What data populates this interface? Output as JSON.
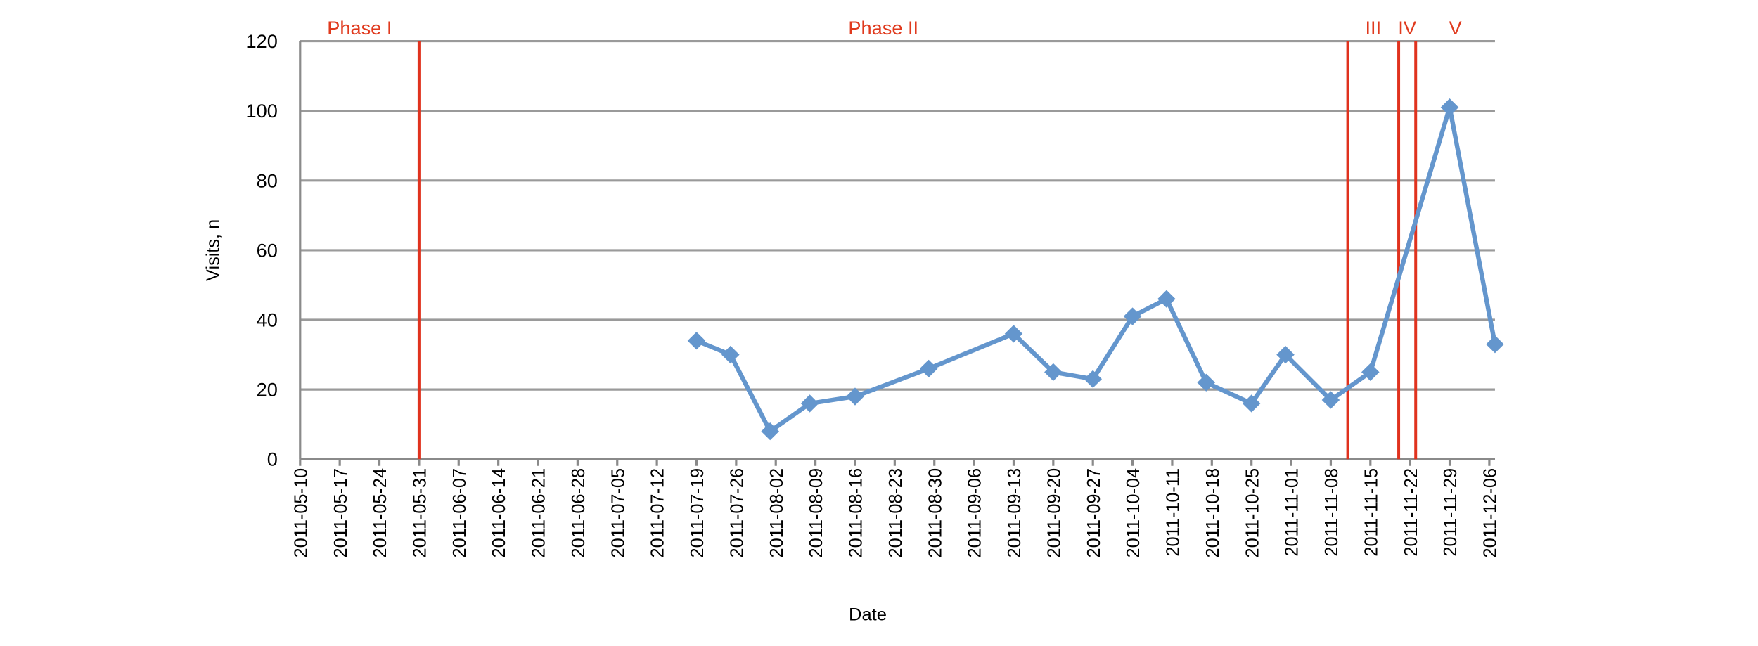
{
  "chart_data": {
    "type": "line",
    "x_label": "Date",
    "y_label": "Visits, n",
    "x": [
      "2011-07-19",
      "2011-07-25",
      "2011-08-01",
      "2011-08-08",
      "2011-08-16",
      "2011-08-29",
      "2011-09-13",
      "2011-09-20",
      "2011-09-27",
      "2011-10-04",
      "2011-10-10",
      "2011-10-17",
      "2011-10-25",
      "2011-10-31",
      "2011-11-08",
      "2011-11-15",
      "2011-11-29",
      "2011-12-07"
    ],
    "series": [
      {
        "name": "Visits",
        "color": "#6496cd",
        "values": [
          34,
          30,
          8,
          16,
          18,
          26,
          36,
          25,
          23,
          41,
          46,
          22,
          16,
          30,
          17,
          25,
          101,
          33
        ]
      }
    ],
    "xlim": [
      "2011-05-10",
      "2011-12-07"
    ],
    "xticks": [
      "2011-05-10",
      "2011-05-17",
      "2011-05-24",
      "2011-05-31",
      "2011-06-07",
      "2011-06-14",
      "2011-06-21",
      "2011-06-28",
      "2011-07-05",
      "2011-07-12",
      "2011-07-19",
      "2011-07-26",
      "2011-08-02",
      "2011-08-09",
      "2011-08-16",
      "2011-08-23",
      "2011-08-30",
      "2011-09-06",
      "2011-09-13",
      "2011-09-20",
      "2011-09-27",
      "2011-10-04",
      "2011-10-11",
      "2011-10-18",
      "2011-10-25",
      "2011-11-01",
      "2011-11-08",
      "2011-11-15",
      "2011-11-22",
      "2011-11-29",
      "2011-12-06"
    ],
    "ylim": [
      0,
      120
    ],
    "yticks": [
      0,
      20,
      40,
      60,
      80,
      100,
      120
    ],
    "grid": true,
    "phase_color": "#e0321e",
    "phase_boundaries": [
      "2011-05-31",
      "2011-11-11",
      "2011-11-20",
      "2011-11-23"
    ],
    "phase_labels": [
      "Phase I",
      "Phase II",
      "III",
      "IV",
      "V"
    ]
  }
}
